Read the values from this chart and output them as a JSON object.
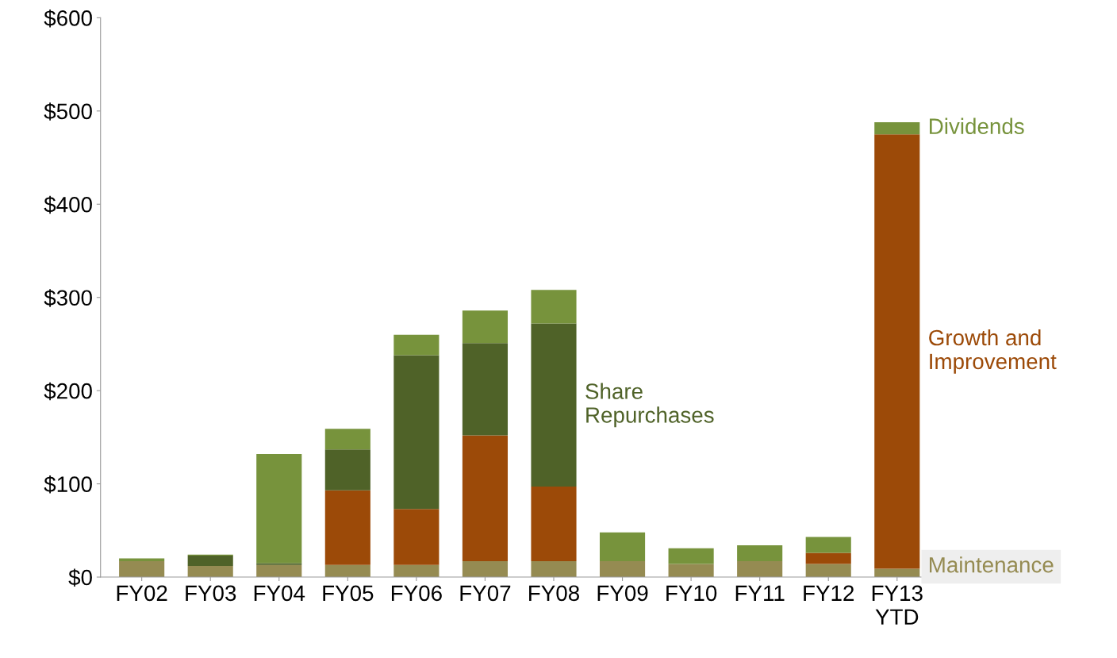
{
  "chart_data": {
    "type": "bar",
    "stacked": true,
    "categories": [
      "FY02",
      "FY03",
      "FY04",
      "FY05",
      "FY06",
      "FY07",
      "FY08",
      "FY09",
      "FY10",
      "FY11",
      "FY12",
      "FY13\nYTD"
    ],
    "series": [
      {
        "name": "Maintenance",
        "color": "#958b52",
        "values": [
          17,
          12,
          13,
          13,
          13,
          17,
          17,
          17,
          14,
          17,
          14,
          9
        ]
      },
      {
        "name": "Growth and\nImprovement",
        "color": "#9c4a08",
        "values": [
          0,
          0,
          0,
          80,
          60,
          135,
          80,
          0,
          0,
          0,
          12,
          466
        ]
      },
      {
        "name": "Share\nRepurchases",
        "color": "#4f6228",
        "values": [
          0,
          11,
          2,
          44,
          165,
          99,
          175,
          0,
          0,
          0,
          0,
          0
        ]
      },
      {
        "name": "Dividends",
        "color": "#77933c",
        "values": [
          3,
          1,
          117,
          22,
          22,
          35,
          36,
          31,
          17,
          17,
          17,
          13
        ]
      }
    ],
    "ylim": [
      0,
      600
    ],
    "yticks": [
      {
        "value": 0,
        "label": "$0"
      },
      {
        "value": 100,
        "label": "$100"
      },
      {
        "value": 200,
        "label": "$200"
      },
      {
        "value": 300,
        "label": "$300"
      },
      {
        "value": 400,
        "label": "$400"
      },
      {
        "value": 500,
        "label": "$500"
      },
      {
        "value": 600,
        "label": "$600"
      }
    ],
    "grid": false,
    "legend": false
  }
}
